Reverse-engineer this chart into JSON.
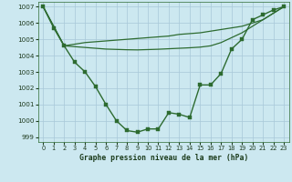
{
  "title": "Graphe pression niveau de la mer (hPa)",
  "bg_color": "#cce8f0",
  "grid_color": "#a8c8d8",
  "line_color": "#2d6b30",
  "ylim": [
    998.7,
    1007.3
  ],
  "xlim": [
    -0.5,
    23.5
  ],
  "yticks": [
    999,
    1000,
    1001,
    1002,
    1003,
    1004,
    1005,
    1006,
    1007
  ],
  "xticks": [
    0,
    1,
    2,
    3,
    4,
    5,
    6,
    7,
    8,
    9,
    10,
    11,
    12,
    13,
    14,
    15,
    16,
    17,
    18,
    19,
    20,
    21,
    22,
    23
  ],
  "line1_x": [
    0,
    1,
    2,
    3,
    4,
    5,
    6,
    7,
    8,
    9,
    10,
    11,
    12,
    13,
    14,
    15,
    16,
    17,
    18,
    19,
    20,
    21,
    22,
    23
  ],
  "line1_y": [
    1007.0,
    1005.7,
    1004.6,
    1003.6,
    1003.0,
    1002.1,
    1001.0,
    1000.0,
    999.4,
    999.3,
    999.5,
    999.5,
    1000.5,
    1000.4,
    1000.2,
    1002.2,
    1002.2,
    1002.9,
    1004.4,
    1005.0,
    1006.2,
    1006.5,
    1006.8,
    1007.0
  ],
  "line2_x": [
    0,
    2,
    23
  ],
  "line2_y": [
    1007.0,
    1004.6,
    1007.0
  ],
  "line3_x": [
    0,
    2,
    23
  ],
  "line3_y": [
    1007.0,
    1004.6,
    1007.0
  ],
  "line2_full_x": [
    0,
    1,
    2,
    3,
    4,
    5,
    6,
    7,
    8,
    9,
    10,
    11,
    12,
    13,
    14,
    15,
    16,
    17,
    18,
    19,
    20,
    21,
    22,
    23
  ],
  "line2_full_y": [
    1007.0,
    1005.8,
    1004.6,
    1004.7,
    1004.8,
    1004.85,
    1004.9,
    1004.95,
    1005.0,
    1005.05,
    1005.1,
    1005.15,
    1005.2,
    1005.3,
    1005.35,
    1005.4,
    1005.5,
    1005.6,
    1005.7,
    1005.8,
    1006.0,
    1006.2,
    1006.6,
    1007.0
  ],
  "line3_full_x": [
    0,
    1,
    2,
    3,
    4,
    5,
    6,
    7,
    8,
    9,
    10,
    11,
    12,
    13,
    14,
    15,
    16,
    17,
    18,
    19,
    20,
    21,
    22,
    23
  ],
  "line3_full_y": [
    1007.0,
    1005.8,
    1004.6,
    1004.55,
    1004.5,
    1004.45,
    1004.4,
    1004.38,
    1004.36,
    1004.35,
    1004.37,
    1004.39,
    1004.42,
    1004.45,
    1004.48,
    1004.52,
    1004.6,
    1004.8,
    1005.1,
    1005.4,
    1005.8,
    1006.2,
    1006.6,
    1007.0
  ]
}
